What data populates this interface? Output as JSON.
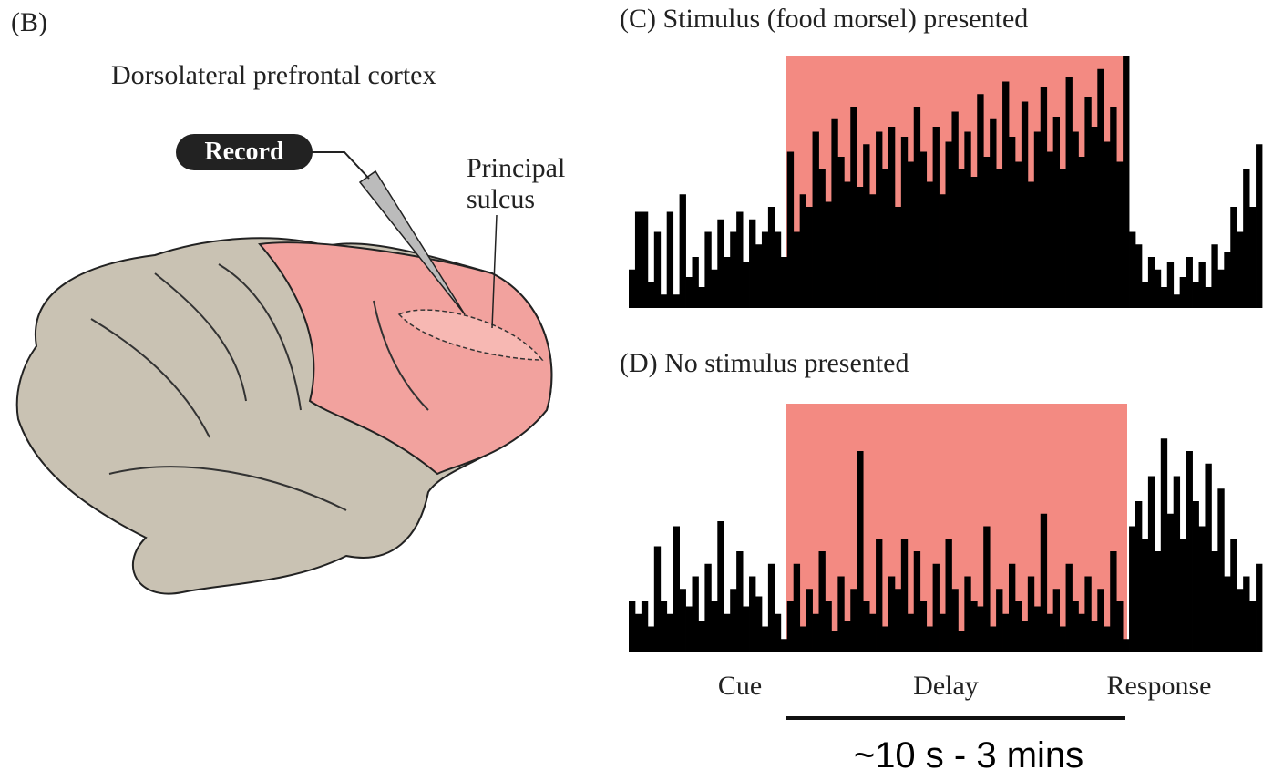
{
  "panel_b": {
    "label": "(B)",
    "title": "Dorsolateral prefrontal cortex",
    "record": "Record",
    "sulcus": "Principal\nsulcus"
  },
  "panel_c": {
    "title": "(C)  Stimulus (food morsel) presented",
    "bars": [
      15,
      38,
      38,
      10,
      30,
      5,
      38,
      5,
      45,
      12,
      20,
      8,
      30,
      15,
      35,
      20,
      30,
      38,
      18,
      35,
      25,
      30,
      40,
      30,
      20,
      62,
      30,
      45,
      40,
      70,
      55,
      42,
      75,
      60,
      50,
      80,
      48,
      65,
      45,
      70,
      55,
      72,
      40,
      68,
      58,
      80,
      62,
      50,
      72,
      45,
      66,
      78,
      55,
      70,
      52,
      85,
      60,
      75,
      55,
      90,
      68,
      58,
      82,
      50,
      70,
      88,
      62,
      76,
      55,
      92,
      70,
      60,
      84,
      72,
      95,
      66,
      80,
      58,
      100,
      30,
      25,
      10,
      20,
      15,
      8,
      18,
      5,
      12,
      20,
      10,
      18,
      8,
      25,
      15,
      22,
      40,
      30,
      55,
      40,
      65
    ]
  },
  "panel_d": {
    "title": "(D)  No stimulus presented",
    "bars": [
      20,
      15,
      20,
      10,
      42,
      20,
      15,
      50,
      25,
      18,
      30,
      12,
      35,
      20,
      52,
      15,
      25,
      40,
      18,
      30,
      22,
      10,
      35,
      15,
      5,
      20,
      35,
      10,
      25,
      15,
      40,
      20,
      8,
      30,
      12,
      25,
      80,
      20,
      15,
      45,
      10,
      30,
      25,
      45,
      15,
      40,
      20,
      10,
      35,
      15,
      45,
      25,
      8,
      30,
      20,
      18,
      50,
      10,
      25,
      15,
      35,
      20,
      12,
      30,
      18,
      55,
      15,
      25,
      10,
      35,
      20,
      15,
      30,
      12,
      25,
      10,
      40,
      20,
      5,
      50,
      60,
      45,
      70,
      40,
      85,
      55,
      70,
      45,
      80,
      60,
      50,
      75,
      40,
      65,
      30,
      45,
      25,
      30,
      20,
      35
    ]
  },
  "phases": [
    "Cue",
    "Delay",
    "Response"
  ],
  "duration": "~10 s - 3 mins"
}
